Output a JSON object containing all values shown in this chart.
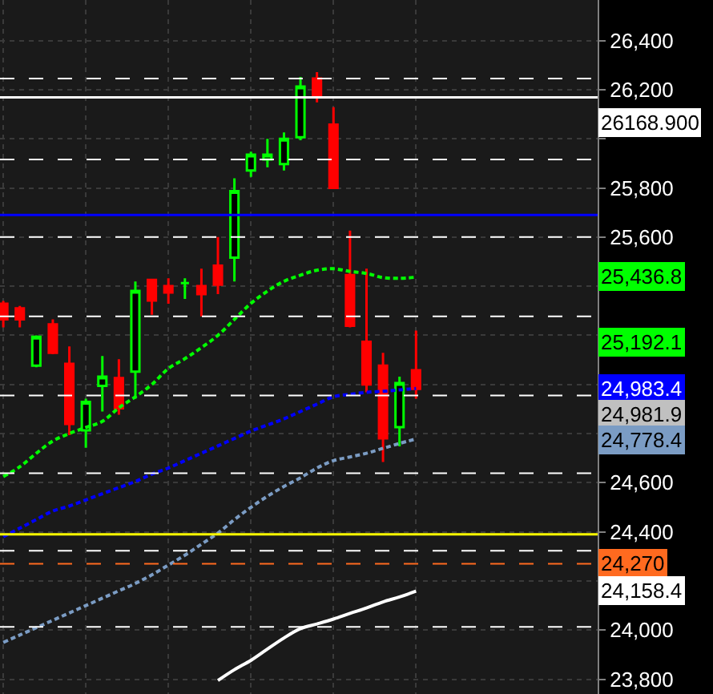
{
  "chart_data": {
    "type": "candlestick",
    "categories": [
      null,
      null,
      null,
      null,
      null,
      null,
      null,
      null,
      null,
      null,
      null,
      null,
      null,
      null,
      null,
      null,
      null,
      null,
      null,
      null,
      null,
      null,
      null,
      null,
      null,
      null
    ],
    "ohlc": [
      [
        25329,
        25340,
        25232,
        25265
      ],
      [
        25310,
        25320,
        25232,
        25265
      ],
      [
        25077,
        25200,
        25070,
        25194
      ],
      [
        25245,
        25265,
        25123,
        25129
      ],
      [
        25084,
        25155,
        24794,
        24839
      ],
      [
        24813,
        24942,
        24742,
        24929
      ],
      [
        24994,
        25116,
        24890,
        25032
      ],
      [
        25026,
        25103,
        24877,
        24903
      ],
      [
        25052,
        25419,
        24942,
        25381
      ],
      [
        25426,
        25430,
        25284,
        25342
      ],
      [
        25400,
        25432,
        25329,
        25374
      ],
      [
        25413,
        25432,
        25348,
        25413
      ],
      [
        25400,
        25471,
        25277,
        25368
      ],
      [
        25484,
        25600,
        25368,
        25406
      ],
      [
        25516,
        25839,
        25419,
        25787
      ],
      [
        25871,
        25948,
        25845,
        25935
      ],
      [
        25916,
        26000,
        25884,
        25935
      ],
      [
        25897,
        26026,
        25871,
        26000
      ],
      [
        26006,
        26252,
        25994,
        26213
      ],
      [
        26245,
        26271,
        26148,
        26174
      ],
      [
        26058,
        26129,
        25800,
        25800
      ],
      [
        25445,
        25626,
        25232,
        25239
      ],
      [
        25174,
        25471,
        24968,
        25000
      ],
      [
        25077,
        25129,
        24684,
        24781
      ],
      [
        24826,
        25032,
        24748,
        25006
      ],
      [
        25058,
        25219,
        24942,
        24981.9
      ]
    ],
    "colors": [
      "#ff0000",
      "#ff0000",
      "#00ff00",
      "#ff0000",
      "#ff0000",
      "#00ff00",
      "#00ff00",
      "#ff0000",
      "#00ff00",
      "#ff0000",
      "#ff0000",
      "#00ff00",
      "#ff0000",
      "#ff0000",
      "#00ff00",
      "#00ff00",
      "#00ff00",
      "#00ff00",
      "#00ff00",
      "#ff0000",
      "#ff0000",
      "#ff0000",
      "#ff0000",
      "#ff0000",
      "#00ff00",
      "#ff0000"
    ],
    "value_labels": [
      null,
      null,
      null,
      null,
      null,
      null,
      null,
      null,
      null,
      null,
      null,
      null,
      null,
      null,
      null,
      null,
      null,
      null,
      null,
      null,
      null,
      null,
      null,
      null,
      null,
      "24,981.9"
    ],
    "series": [
      {
        "type": "line",
        "color": "#00ff00",
        "line_style": "dotted",
        "values": [
          24625,
          24665,
          24720,
          24770,
          24800,
          24825,
          24850,
          24905,
          24950,
          25000,
          25065,
          25105,
          25150,
          25200,
          25265,
          25330,
          25380,
          25420,
          25445,
          25465,
          25471,
          25460,
          25452,
          25435,
          25432,
          25436.8
        ]
      },
      {
        "type": "line",
        "color": "#0000ff",
        "line_style": "dotted",
        "values": [
          24380,
          24415,
          24450,
          24485,
          24505,
          24530,
          24555,
          24580,
          24605,
          24635,
          24660,
          24690,
          24720,
          24750,
          24780,
          24810,
          24835,
          24860,
          24890,
          24920,
          24950,
          24960,
          24968,
          24972,
          24978,
          24983.4
        ]
      },
      {
        "type": "line",
        "color": "#7b9cc4",
        "line_style": "dotted",
        "values": [
          23950,
          23980,
          24010,
          24040,
          24070,
          24100,
          24130,
          24160,
          24190,
          24225,
          24265,
          24305,
          24350,
          24395,
          24450,
          24500,
          24545,
          24585,
          24620,
          24660,
          24690,
          24705,
          24720,
          24740,
          24760,
          24778.4
        ]
      },
      {
        "type": "line",
        "color": "#ffffff",
        "line_style": "solid",
        "values": [
          null,
          null,
          null,
          null,
          null,
          null,
          null,
          null,
          null,
          null,
          null,
          null,
          null,
          23795,
          23839,
          23877,
          23923,
          23968,
          24006,
          24025,
          24045,
          24068,
          24090,
          24115,
          24135,
          24158.4
        ]
      }
    ],
    "ref_lines": [
      {
        "axis": "y",
        "value": 25690,
        "color": "#0000ff",
        "line_style": "solid"
      },
      {
        "axis": "y",
        "value": 24390,
        "color": "#ffff00",
        "line_style": "solid"
      },
      {
        "axis": "y",
        "value": 24270,
        "color": "#ff6a1f",
        "line_style": "dashed",
        "label": "24,270"
      },
      {
        "axis": "y",
        "value": 26168.9,
        "color": "#ffffff",
        "line_style": "solid",
        "label": "26168.900"
      },
      {
        "axis": "y",
        "value": 26245,
        "color": "#ffffff",
        "line_style": "dashed"
      },
      {
        "axis": "y",
        "value": 25916,
        "color": "#ffffff",
        "line_style": "dashed"
      },
      {
        "axis": "y",
        "value": 25600,
        "color": "#ffffff",
        "line_style": "dashed"
      },
      {
        "axis": "y",
        "value": 25277,
        "color": "#ffffff",
        "line_style": "dashed"
      },
      {
        "axis": "y",
        "value": 24955,
        "color": "#ffffff",
        "line_style": "dashed"
      },
      {
        "axis": "y",
        "value": 24639,
        "color": "#ffffff",
        "line_style": "dashed"
      },
      {
        "axis": "y",
        "value": 24323,
        "color": "#ffffff",
        "line_style": "dashed"
      },
      {
        "axis": "y",
        "value": 24013,
        "color": "#ffffff",
        "line_style": "dashed"
      }
    ],
    "annotations": [
      "25,436.8",
      "24,983.4",
      "24,778.4",
      "24,158.4",
      "25,192.1"
    ],
    "ylim": [
      23740,
      26565
    ],
    "yticks": [
      {
        "value": 23800,
        "label": "23,800"
      },
      {
        "value": 24000,
        "label": "24,000"
      },
      {
        "value": 24200,
        "label": null
      },
      {
        "value": 24400,
        "label": "24,400"
      },
      {
        "value": 24600,
        "label": "24,600"
      },
      {
        "value": 24800,
        "label": null
      },
      {
        "value": 25000,
        "label": null
      },
      {
        "value": 25200,
        "label": null
      },
      {
        "value": 25400,
        "label": null
      },
      {
        "value": 25600,
        "label": "25,600"
      },
      {
        "value": 25800,
        "label": "25,800"
      },
      {
        "value": 26000,
        "label": null
      },
      {
        "value": 26200,
        "label": "26,200"
      },
      {
        "value": 26400,
        "label": "26,400"
      }
    ],
    "grid": true,
    "marker": "none",
    "tick_labels": "y"
  }
}
